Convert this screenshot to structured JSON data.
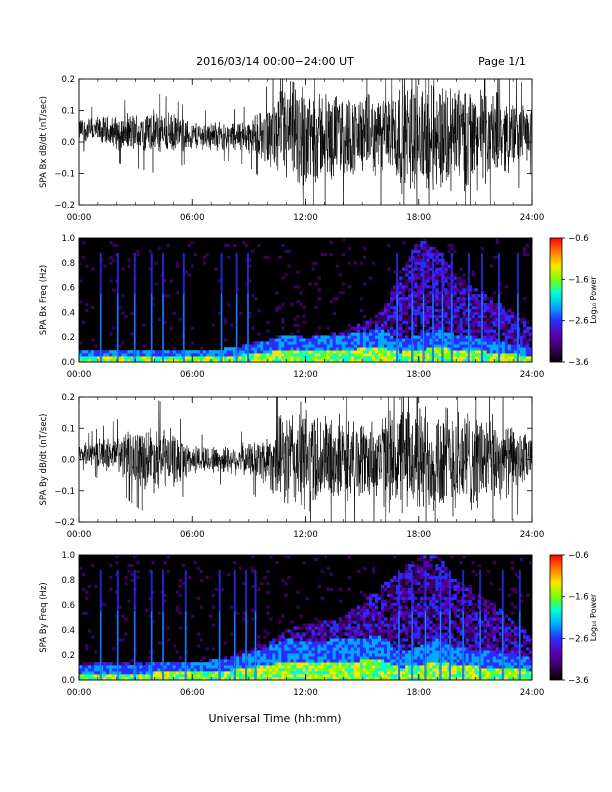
{
  "header": {
    "date_range": "2016/03/14   00:00−24:00 UT",
    "page": "Page 1/1"
  },
  "footer": {
    "xlabel": "Universal Time (hh:mm)"
  },
  "colors": {
    "background": "#ffffff",
    "trace": "#000000",
    "spectrogram_background": "#000000",
    "colormap": [
      "#000000",
      "#3b0060",
      "#5a00b4",
      "#2a2dff",
      "#00a8ff",
      "#00ffd2",
      "#7cff00",
      "#ffe600",
      "#ff7a00",
      "#ff0000"
    ]
  },
  "chart_data": [
    {
      "type": "line",
      "ylabel": "SPA Bx dB/dt (nT/sec)",
      "x_ticks": [
        "00:00",
        "06:00",
        "12:00",
        "18:00",
        "24:00"
      ],
      "xlim": [
        0,
        24
      ],
      "ylim": [
        -0.2,
        0.2
      ],
      "y_ticks": [
        "−0.2",
        "−0.1",
        "0.0",
        "0.1",
        "0.2"
      ],
      "x_unit": "hours UT",
      "amplitude_envelope": {
        "x": [
          0,
          1,
          2,
          3,
          4,
          5,
          6,
          7,
          8,
          9,
          10,
          11,
          12,
          13,
          14,
          15,
          16,
          17,
          18,
          19,
          20,
          21,
          22,
          23,
          24
        ],
        "half_amplitude": [
          0.04,
          0.05,
          0.06,
          0.07,
          0.08,
          0.07,
          0.05,
          0.05,
          0.05,
          0.06,
          0.1,
          0.19,
          0.2,
          0.16,
          0.15,
          0.14,
          0.14,
          0.2,
          0.2,
          0.2,
          0.2,
          0.18,
          0.15,
          0.12,
          0.08
        ],
        "baseline": [
          0.04,
          0.035,
          0.03,
          0.03,
          0.03,
          0.025,
          0.02,
          0.02,
          0.02,
          0.02,
          0.02,
          0.02,
          0.02,
          0.02,
          0.02,
          0.02,
          0.02,
          0.02,
          0.02,
          0.02,
          0.02,
          0.02,
          0.02,
          0.025,
          0.03
        ]
      }
    },
    {
      "type": "heatmap",
      "ylabel": "SPA Bx Freq (Hz)",
      "x_ticks": [
        "00:00",
        "06:00",
        "12:00",
        "18:00",
        "24:00"
      ],
      "xlim": [
        0,
        24
      ],
      "ylim": [
        0,
        1.0
      ],
      "y_ticks": [
        "0.0",
        "0.2",
        "0.4",
        "0.6",
        "0.8",
        "1.0"
      ],
      "colorbar": {
        "label": "Log₁₀ Power",
        "range": [
          -3.6,
          -0.6
        ],
        "ticks": [
          "−0.6",
          "−1.6",
          "−2.6",
          "−3.6"
        ]
      },
      "activity": {
        "x": [
          0,
          2,
          4,
          6,
          8,
          10,
          11,
          12,
          14,
          16,
          17,
          18,
          19,
          20,
          22,
          24
        ],
        "low_band_height": [
          0.04,
          0.04,
          0.04,
          0.04,
          0.05,
          0.08,
          0.1,
          0.09,
          0.1,
          0.12,
          0.08,
          0.1,
          0.12,
          0.1,
          0.08,
          0.05
        ],
        "spread_height": [
          0.1,
          0.1,
          0.1,
          0.08,
          0.1,
          0.18,
          0.22,
          0.2,
          0.24,
          0.4,
          0.7,
          1.0,
          0.9,
          0.7,
          0.5,
          0.3
        ]
      },
      "bright_stripes_hours": [
        1.1,
        2.0,
        2.9,
        3.8,
        4.4,
        5.5,
        7.5,
        8.3,
        8.9,
        16.8,
        17.6,
        18.2,
        18.7,
        19.2,
        19.7,
        20.6,
        21.3,
        22.2,
        23.2
      ]
    },
    {
      "type": "line",
      "ylabel": "SPA By dB/dt (nT/sec)",
      "x_ticks": [
        "00:00",
        "06:00",
        "12:00",
        "18:00",
        "24:00"
      ],
      "xlim": [
        0,
        24
      ],
      "ylim": [
        -0.2,
        0.2
      ],
      "y_ticks": [
        "−0.2",
        "−0.1",
        "0.0",
        "0.1",
        "0.2"
      ],
      "x_unit": "hours UT",
      "amplitude_envelope": {
        "x": [
          0,
          1,
          2,
          3,
          4,
          5,
          6,
          7,
          8,
          9,
          10,
          11,
          12,
          13,
          14,
          15,
          16,
          17,
          18,
          19,
          20,
          21,
          22,
          23,
          24
        ],
        "half_amplitude": [
          0.03,
          0.05,
          0.07,
          0.1,
          0.12,
          0.1,
          0.05,
          0.05,
          0.05,
          0.06,
          0.1,
          0.18,
          0.2,
          0.16,
          0.15,
          0.14,
          0.16,
          0.2,
          0.2,
          0.2,
          0.2,
          0.18,
          0.15,
          0.12,
          0.08
        ],
        "baseline": [
          0.02,
          0.02,
          0.015,
          0.01,
          0.005,
          0.0,
          0.0,
          0.0,
          0.0,
          0.0,
          0.0,
          0.0,
          0.0,
          0.0,
          0.0,
          0.0,
          0.0,
          0.0,
          0.0,
          0.0,
          0.0,
          0.0,
          0.0,
          0.0,
          0.0
        ]
      }
    },
    {
      "type": "heatmap",
      "ylabel": "SPA By Freq (Hz)",
      "x_ticks": [
        "00:00",
        "06:00",
        "12:00",
        "18:00",
        "24:00"
      ],
      "xlim": [
        0,
        24
      ],
      "ylim": [
        0,
        1.0
      ],
      "y_ticks": [
        "0.0",
        "0.2",
        "0.4",
        "0.6",
        "0.8",
        "1.0"
      ],
      "colorbar": {
        "label": "Log₁₀ Power",
        "range": [
          -3.6,
          -0.6
        ],
        "ticks": [
          "−0.6",
          "−1.6",
          "−2.6",
          "−3.6"
        ]
      },
      "activity": {
        "x": [
          0,
          2,
          4,
          6,
          8,
          10,
          11,
          12,
          14,
          16,
          17,
          18,
          19,
          20,
          22,
          24
        ],
        "low_band_height": [
          0.05,
          0.05,
          0.06,
          0.06,
          0.08,
          0.12,
          0.15,
          0.14,
          0.15,
          0.16,
          0.1,
          0.12,
          0.15,
          0.12,
          0.1,
          0.08
        ],
        "spread_height": [
          0.15,
          0.15,
          0.15,
          0.12,
          0.2,
          0.3,
          0.4,
          0.45,
          0.5,
          0.75,
          0.85,
          1.0,
          1.0,
          0.8,
          0.6,
          0.35
        ]
      },
      "bright_stripes_hours": [
        1.1,
        2.0,
        2.9,
        3.8,
        4.4,
        5.6,
        7.4,
        8.2,
        8.8,
        9.3,
        16.9,
        17.6,
        18.3,
        19.1,
        19.6,
        20.3,
        21.2,
        22.4,
        23.3
      ]
    }
  ]
}
